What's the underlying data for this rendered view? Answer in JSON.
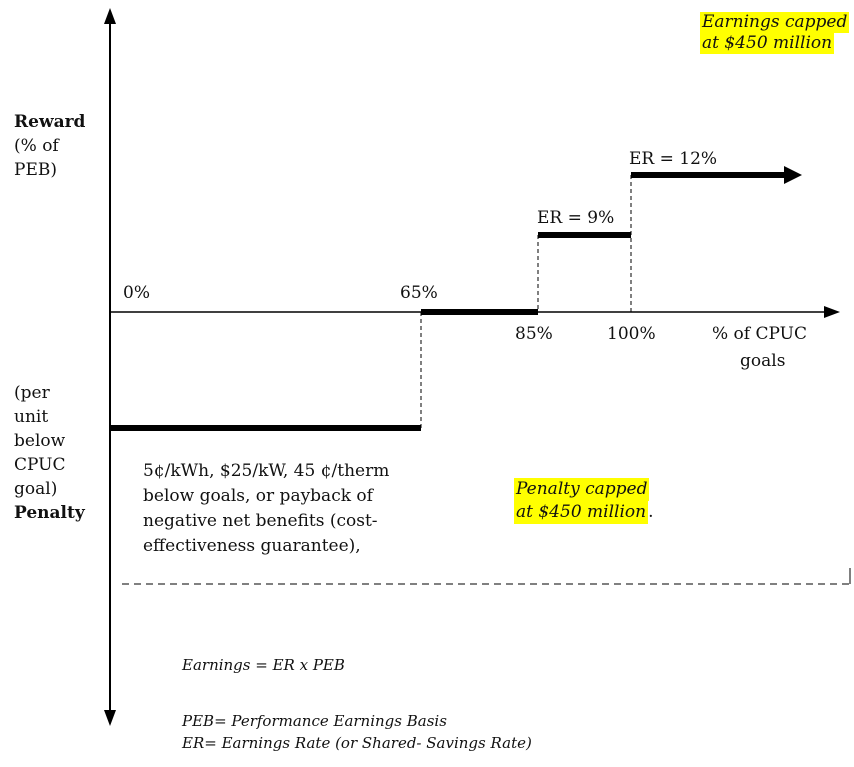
{
  "y_axis": {
    "reward_heading": "Reward",
    "reward_sub_1": "(% of",
    "reward_sub_2": "PEB)",
    "penalty_sub_1": "(per",
    "penalty_sub_2": "unit",
    "penalty_sub_3": "below",
    "penalty_sub_4": "CPUC",
    "penalty_sub_5": "goal)",
    "penalty_heading": "Penalty"
  },
  "x_axis": {
    "label_line_1": "% of CPUC",
    "label_line_2": "goals",
    "tick_0": "0%",
    "tick_65": "65%",
    "tick_85": "85%",
    "tick_100": "100%"
  },
  "tiers": {
    "er_9": "ER = 9%",
    "er_12": "ER = 12%"
  },
  "penalty_text": {
    "line_1": "5¢/kWh, $25/kW, 45 ¢/therm",
    "line_2": "below goals, or payback of",
    "line_3": "negative net benefits (cost-",
    "line_4": "effectiveness guarantee),"
  },
  "caps": {
    "earnings_line_1": "Earnings capped",
    "earnings_line_2": "at $450 million",
    "penalty_line_1": "Penalty capped",
    "penalty_line_2": "at $450 million",
    "penalty_period": ".",
    "highlight_color": "#ffff00"
  },
  "definitions": {
    "formula": "Earnings = ER x PEB",
    "peb": "PEB= Performance Earnings Basis",
    "er": "ER= Earnings Rate (or Shared- Savings Rate)"
  }
}
